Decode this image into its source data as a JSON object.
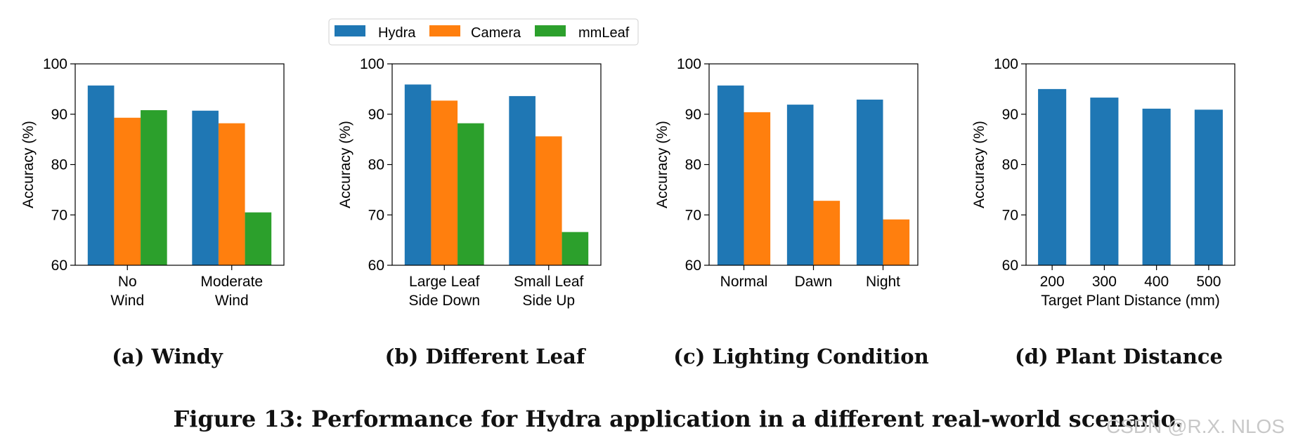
{
  "chart_data": [
    {
      "type": "bar",
      "panel_caption": "(a) Windy",
      "ylabel": "Accuracy (%)",
      "xlabel": "",
      "ylim": [
        60,
        100
      ],
      "yticks": [
        "60",
        "70",
        "80",
        "90",
        "100"
      ],
      "categories": [
        [
          "No",
          "Wind"
        ],
        [
          "Moderate",
          "Wind"
        ]
      ],
      "series": [
        {
          "name": "Hydra",
          "values": [
            95.7,
            90.7
          ]
        },
        {
          "name": "Camera",
          "values": [
            89.3,
            88.2
          ]
        },
        {
          "name": "mmLeaf",
          "values": [
            90.8,
            70.5
          ]
        }
      ]
    },
    {
      "type": "bar",
      "panel_caption": "(b) Different Leaf",
      "ylabel": "Accuracy (%)",
      "xlabel": "",
      "ylim": [
        60,
        100
      ],
      "yticks": [
        "60",
        "70",
        "80",
        "90",
        "100"
      ],
      "categories": [
        [
          "Large Leaf",
          "Side Down"
        ],
        [
          "Small Leaf",
          "Side Up"
        ]
      ],
      "series": [
        {
          "name": "Hydra",
          "values": [
            95.9,
            93.6
          ]
        },
        {
          "name": "Camera",
          "values": [
            92.7,
            85.6
          ]
        },
        {
          "name": "mmLeaf",
          "values": [
            88.2,
            66.6
          ]
        }
      ]
    },
    {
      "type": "bar",
      "panel_caption": "(c) Lighting Condition",
      "ylabel": "Accuracy (%)",
      "xlabel": "",
      "ylim": [
        60,
        100
      ],
      "yticks": [
        "60",
        "70",
        "80",
        "90",
        "100"
      ],
      "categories": [
        [
          "Normal"
        ],
        [
          "Dawn"
        ],
        [
          "Night"
        ]
      ],
      "series": [
        {
          "name": "Hydra",
          "values": [
            95.7,
            91.9,
            92.9
          ]
        },
        {
          "name": "Camera",
          "values": [
            90.4,
            72.8,
            69.1
          ]
        }
      ]
    },
    {
      "type": "bar",
      "panel_caption": "(d) Plant Distance",
      "ylabel": "Accuracy (%)",
      "xlabel": "Target Plant Distance (mm)",
      "ylim": [
        60,
        100
      ],
      "yticks": [
        "60",
        "70",
        "80",
        "90",
        "100"
      ],
      "categories": [
        [
          "200"
        ],
        [
          "300"
        ],
        [
          "400"
        ],
        [
          "500"
        ]
      ],
      "series": [
        {
          "name": "Hydra",
          "values": [
            95.0,
            93.3,
            91.1,
            90.9
          ]
        }
      ]
    }
  ],
  "legend": {
    "entries": [
      {
        "label": "Hydra",
        "color": "#1f77b4"
      },
      {
        "label": "Camera",
        "color": "#ff7f0e"
      },
      {
        "label": "mmLeaf",
        "color": "#2ca02c"
      }
    ]
  },
  "figure_caption": "Figure 13: Performance for Hydra application in a different real-world scenario.",
  "watermark": "CSDN @R.X. NLOS"
}
